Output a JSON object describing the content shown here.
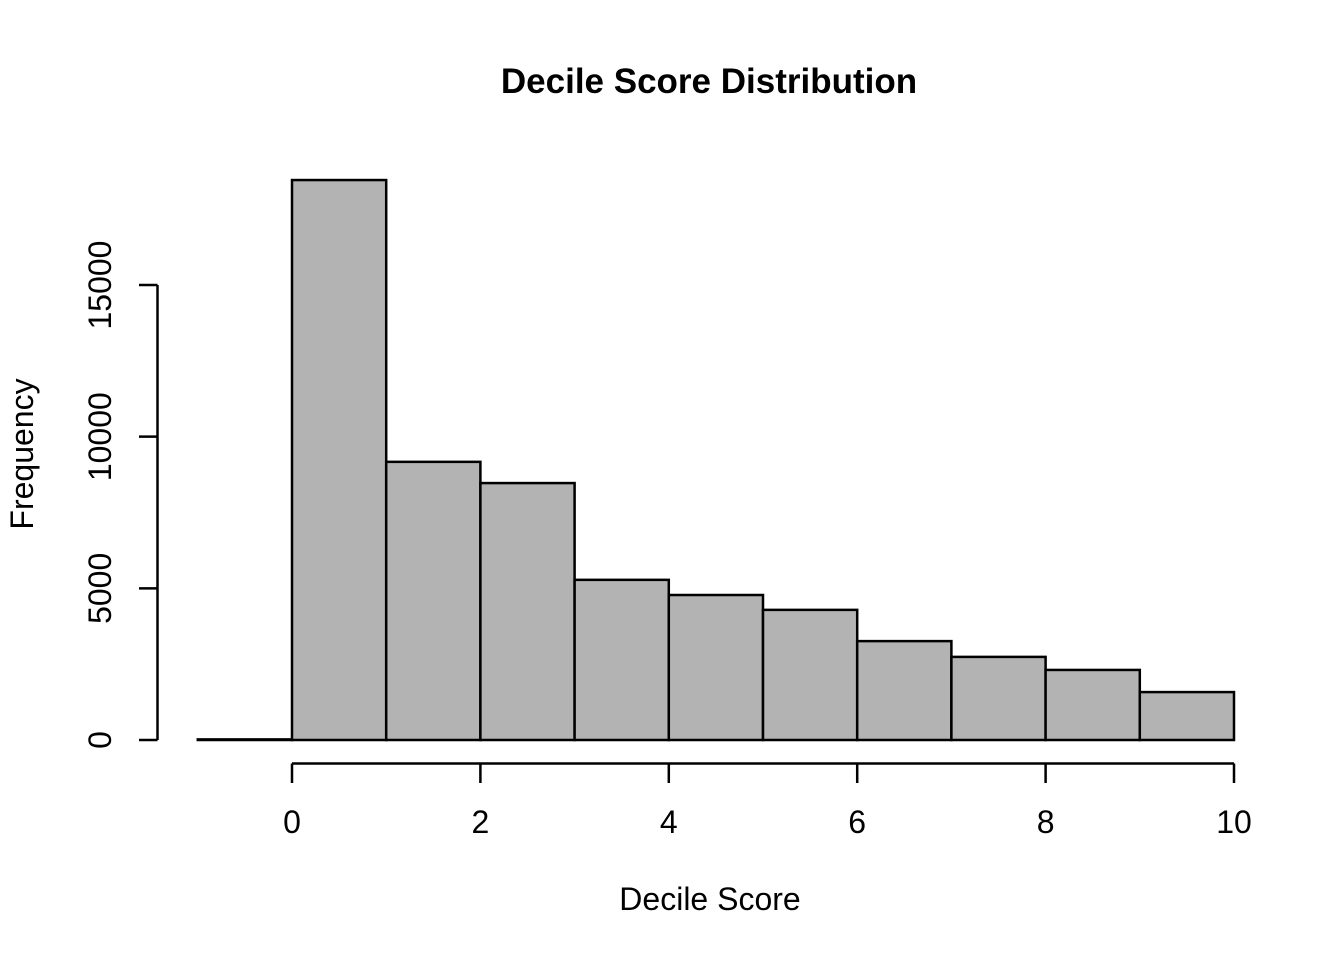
{
  "chart_data": {
    "type": "bar",
    "subtype": "histogram",
    "title": "Decile Score Distribution",
    "xlabel": "Decile Score",
    "ylabel": "Frequency",
    "bin_edges": [
      -1,
      0,
      1,
      2,
      3,
      4,
      5,
      6,
      7,
      8,
      9,
      10
    ],
    "counts": [
      20,
      18460,
      9170,
      8470,
      5280,
      4780,
      4290,
      3260,
      2740,
      2310,
      1580
    ],
    "x_ticks": [
      0,
      2,
      4,
      6,
      8,
      10
    ],
    "y_ticks": [
      0,
      5000,
      10000,
      15000
    ],
    "xlim": [
      -1,
      10
    ],
    "ylim": [
      0,
      15000
    ],
    "grid": false,
    "legend": "none",
    "colors": {
      "bar_fill": "#b3b3b3",
      "line": "#000000",
      "text": "#000000",
      "background": "#ffffff"
    }
  }
}
